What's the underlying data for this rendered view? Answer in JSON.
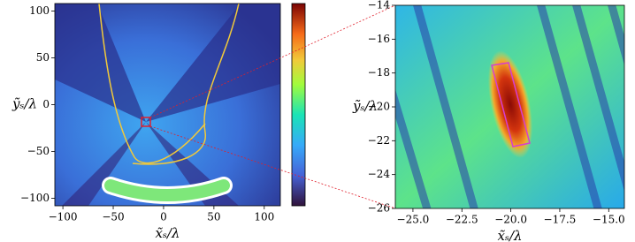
{
  "chart_data": [
    {
      "type": "heatmap",
      "xlabel": "x̃ₛ/λ",
      "ylabel": "ỹₛ/λ",
      "colorbar": true,
      "xlim": [
        -108,
        116
      ],
      "ylim": [
        -108,
        108
      ],
      "xticks": [
        {
          "value": -100,
          "label": "−100"
        },
        {
          "value": -50,
          "label": "−50"
        },
        0,
        50,
        100
      ],
      "yticks": [
        {
          "value": -100,
          "label": "−100"
        },
        {
          "value": -50,
          "label": "−50"
        },
        0,
        50,
        100
      ]
    },
    {
      "type": "heatmap",
      "xlabel": "x̃ₛ/λ",
      "ylabel": "ỹₛ/λ",
      "colorbar": false,
      "xlim": [
        -25.9,
        -14.2
      ],
      "ylim": [
        -26,
        -14
      ],
      "xticks": [
        {
          "value": -25,
          "label": "−25.0"
        },
        {
          "value": -22.5,
          "label": "−22.5"
        },
        {
          "value": -20,
          "label": "−20.0"
        },
        {
          "value": -17.5,
          "label": "−17.5"
        },
        {
          "value": -15,
          "label": "−15.0"
        }
      ],
      "yticks": [
        {
          "value": -26,
          "label": "−26"
        },
        {
          "value": -24,
          "label": "−24"
        },
        {
          "value": -22,
          "label": "−22"
        },
        {
          "value": -20,
          "label": "−20"
        },
        {
          "value": -18,
          "label": "−18"
        },
        {
          "value": -16,
          "label": "−16"
        },
        {
          "value": -14,
          "label": "−14"
        }
      ]
    }
  ]
}
